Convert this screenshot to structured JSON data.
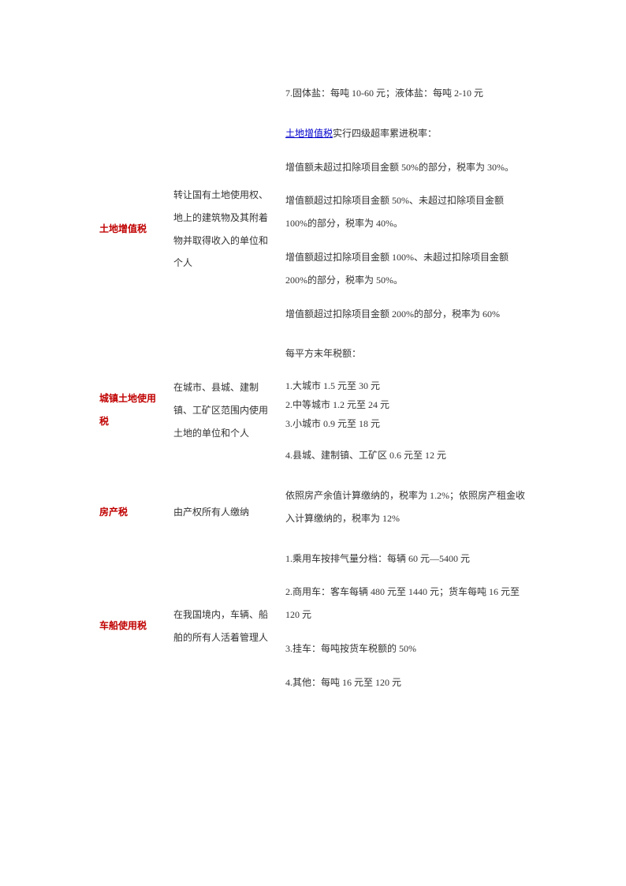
{
  "topRow": {
    "rate": "7.固体盐：每吨 10-60 元；液体盐：每吨 2-10 元"
  },
  "rows": [
    {
      "name": "土地增值税",
      "subject": "转让国有土地使用权、地上的建筑物及其附着物并取得收入的单位和个人",
      "rate_link": "土地增值税",
      "rate_linktail": "实行四级超率累进税率：",
      "rate_paras": [
        "增值额未超过扣除项目金额 50%的部分，税率为 30%。",
        "增值额超过扣除项目金额 50%、未超过扣除项目金额 100%的部分，税率为 40%。",
        "增值额超过扣除项目金额 100%、未超过扣除项目金额 200%的部分，税率为 50%。",
        "增值额超过扣除项目金额 200%的部分，税率为 60%"
      ]
    },
    {
      "name": "城镇土地使用税",
      "subject": "在城市、县城、建制镇、工矿区范围内使用土地的单位和个人",
      "rate_paras": [
        "每平方末年税额：",
        "1.大城市 1.5 元至 30 元",
        "2.中等城市 1.2 元至 24 元",
        "3.小城市 0.9 元至 18 元",
        "",
        "4.县城、建制镇、工矿区 0.6 元至 12 元"
      ]
    },
    {
      "name": "房产税",
      "subject": "由产权所有人缴纳",
      "rate_paras": [
        "依照房产余值计算缴纳的，税率为 1.2%；依照房产租金收入计算缴纳的，税率为 12%"
      ]
    },
    {
      "name": "车船使用税",
      "subject": "在我国境内，车辆、船舶的所有人活着管理人",
      "rate_paras": [
        "1.乘用车按排气量分档：每辆 60 元—5400 元",
        "",
        "2.商用车：客车每辆 480 元至 1440 元；货车每吨 16 元至 120 元",
        "",
        "3.挂车：每吨按货车税额的 50%",
        "",
        "4.其他：每吨 16 元至 120 元"
      ]
    }
  ]
}
